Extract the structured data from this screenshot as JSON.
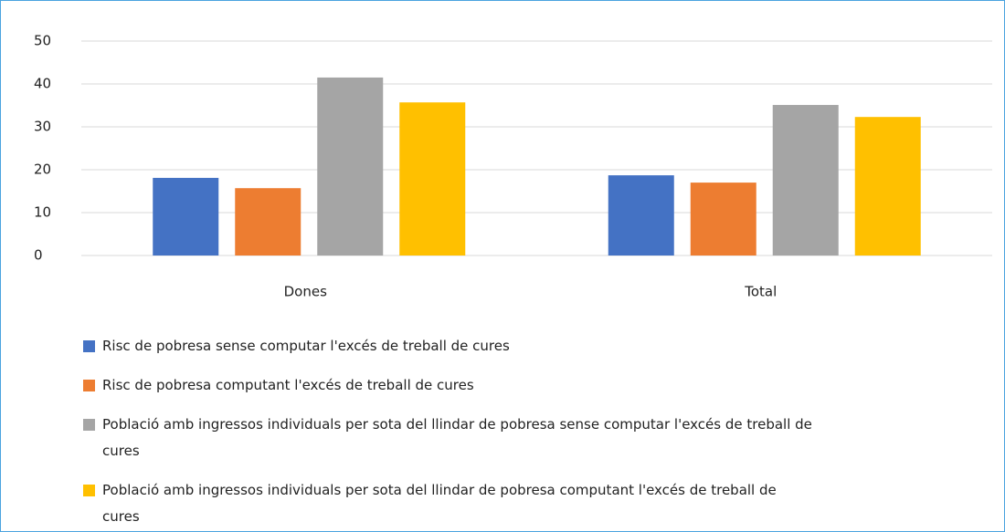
{
  "chart_data": {
    "type": "bar",
    "categories": [
      "Dones",
      "Total"
    ],
    "series": [
      {
        "name": "Risc de pobresa sense computar l'excés de treball de cures",
        "color": "#4472c4",
        "values": [
          18.1,
          18.7
        ]
      },
      {
        "name": "Risc de pobresa computant l'excés de treball de cures",
        "color": "#ed7d31",
        "values": [
          15.7,
          17.0
        ]
      },
      {
        "name": "Població amb ingressos individuals per sota del llindar de pobresa sense computar l'excés de treball de cures",
        "color": "#a5a5a5",
        "values": [
          41.5,
          35.1
        ]
      },
      {
        "name": "Població amb ingressos individuals per sota del llindar de pobresa computant l'excés de treball de cures",
        "color": "#ffc000",
        "values": [
          35.7,
          32.3
        ]
      }
    ],
    "ylim": [
      0,
      50
    ],
    "yticks": [
      0,
      10,
      20,
      30,
      40,
      50
    ],
    "grid": true,
    "legend": "bottom"
  }
}
